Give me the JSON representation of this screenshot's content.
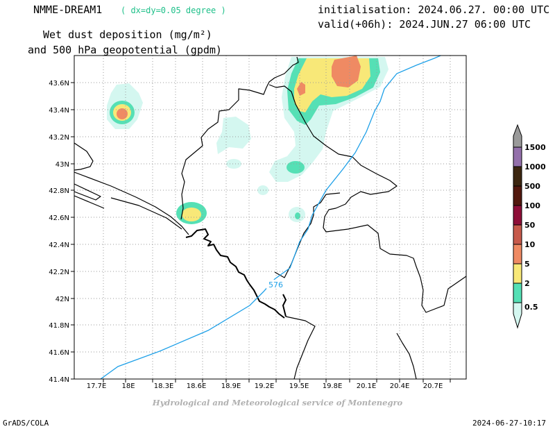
{
  "header": {
    "title": "NMME-DREAM1",
    "resolution": "( dx=dy=0.05 degree )",
    "init": "initialisation: 2024.06.27. 00:00 UTC",
    "valid": "valid(+06h): 2024.JUN.27 06:00 UTC",
    "variable_line1": "Wet dust deposition (mg/m²)",
    "variable_line2": "and 500 hPa geopotential (gpdm)"
  },
  "axes": {
    "lon_ticks": [
      "17.7E",
      "18E",
      "18.3E",
      "18.6E",
      "18.9E",
      "19.2E",
      "19.5E",
      "19.8E",
      "20.1E",
      "20.4E",
      "20.7E"
    ],
    "lat_ticks": [
      "43.6N",
      "43.4N",
      "43.2N",
      "43N",
      "42.8N",
      "42.6N",
      "42.4N",
      "42.2N",
      "42N",
      "41.8N",
      "41.6N",
      "41.4N"
    ],
    "grid": true
  },
  "contour_label": "576",
  "colors": {
    "c05": "#d4f7f0",
    "c2": "#55e0b5",
    "c5": "#f8e878",
    "c10": "#ef8a63",
    "c50": "#c75a4b",
    "c100": "#8e0e38",
    "c500": "#52180e",
    "c1000": "#3c2610",
    "c1500": "#9470ab",
    "geopotential": "#1ea0e8",
    "coast": "#000000"
  },
  "legend": {
    "levels": [
      "0.5",
      "2",
      "5",
      "10",
      "50",
      "100",
      "500",
      "1000",
      "1500"
    ]
  },
  "footer": {
    "credit": "Hydrological and Meteorological service of Montenegro",
    "software": "GrADS/COLA",
    "timestamp": "2024-06-27-10:17"
  }
}
